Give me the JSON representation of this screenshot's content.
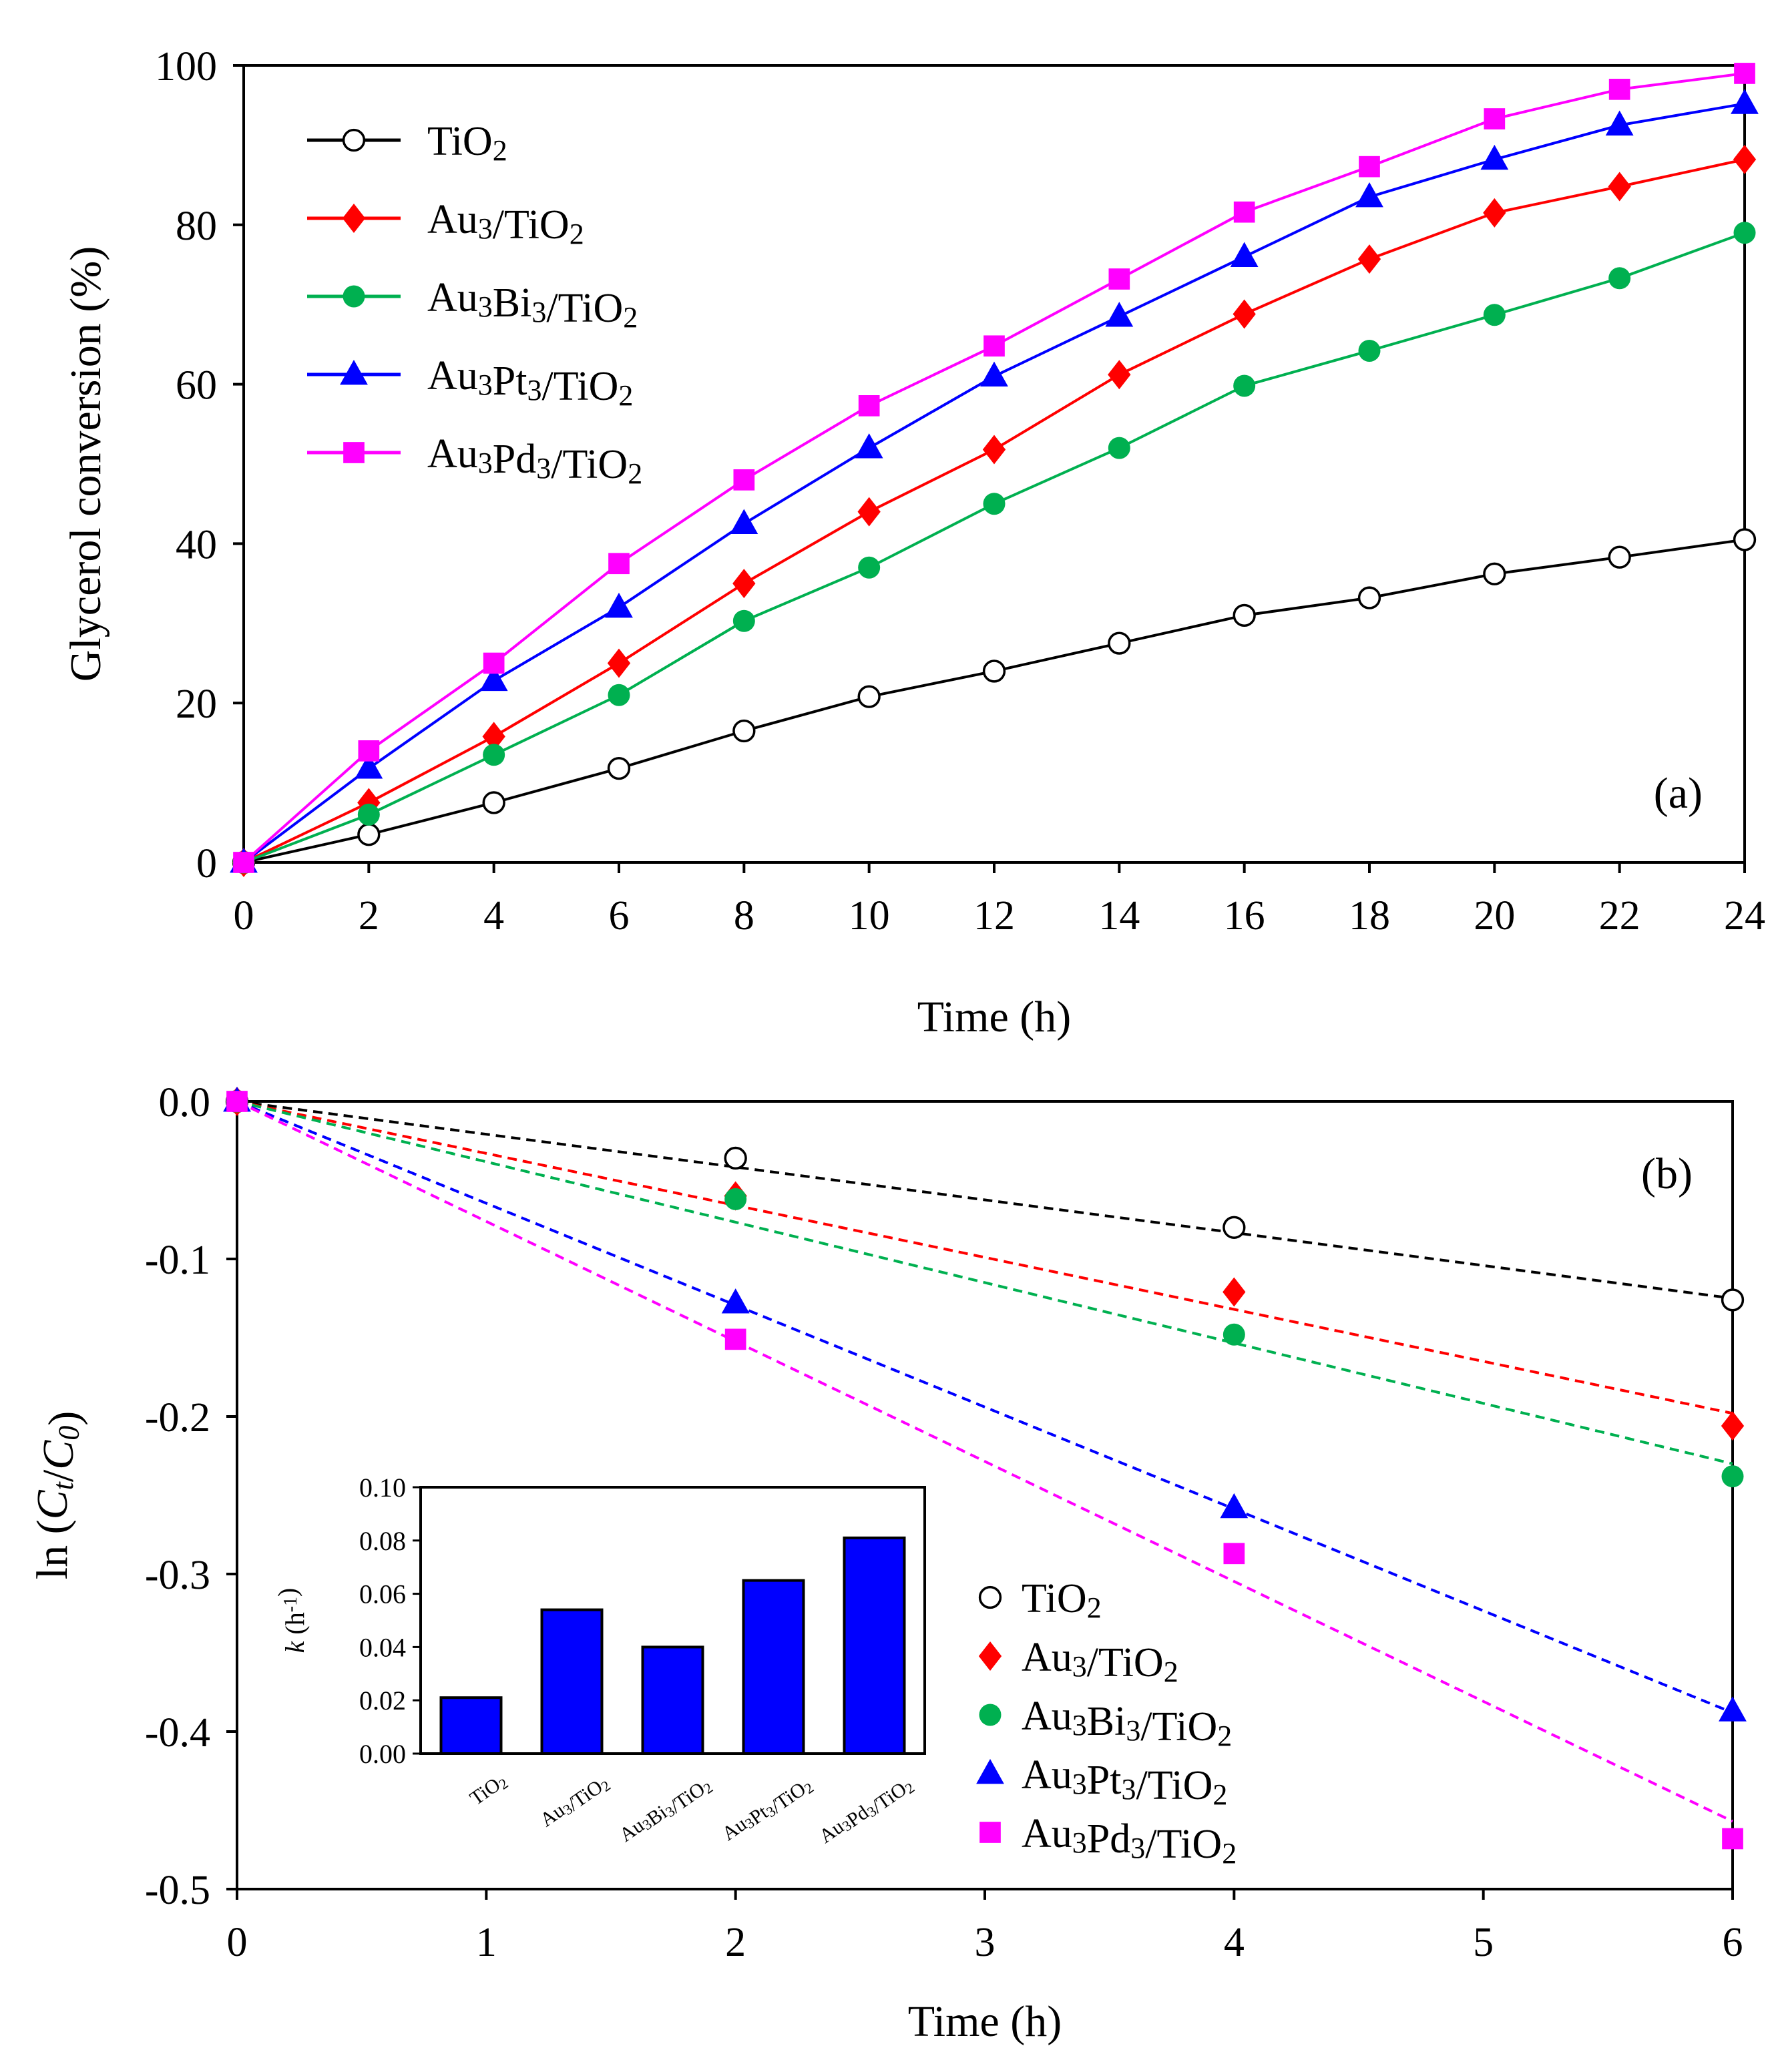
{
  "chart_data": [
    {
      "panel": "(a)",
      "type": "line",
      "xlabel": "Time (h)",
      "ylabel": "Glycerol conversion (%)",
      "xlim": [
        0,
        24
      ],
      "ylim": [
        0,
        100
      ],
      "x_ticks": [
        0,
        2,
        4,
        6,
        8,
        10,
        12,
        14,
        16,
        18,
        20,
        22,
        24
      ],
      "y_ticks": [
        0,
        20,
        40,
        60,
        80,
        100
      ],
      "x": [
        0,
        2,
        4,
        6,
        8,
        10,
        12,
        14,
        16,
        18,
        20,
        22,
        24
      ],
      "legend_position": "top-left",
      "series": [
        {
          "name": "TiO₂",
          "color": "#000000",
          "marker": "open-circle",
          "values": [
            0,
            3.5,
            7.5,
            11.8,
            16.5,
            20.8,
            24,
            27.5,
            31,
            33.2,
            36.2,
            38.3,
            40.5
          ]
        },
        {
          "name": "Au₃/TiO₂",
          "color": "#ff0000",
          "marker": "diamond",
          "values": [
            0,
            7.5,
            15.8,
            25,
            35,
            44,
            51.8,
            61.2,
            68.8,
            75.7,
            81.5,
            84.8,
            88.2
          ]
        },
        {
          "name": "Au₃Bi₃/TiO₂",
          "color": "#00b050",
          "marker": "circle",
          "values": [
            0,
            6,
            13.5,
            21,
            30.3,
            37,
            45,
            52,
            59.8,
            64.2,
            68.7,
            73.3,
            79
          ]
        },
        {
          "name": "Au₃Pt₃/TiO₂",
          "color": "#0000ff",
          "marker": "triangle",
          "values": [
            0,
            11.8,
            22.8,
            32,
            42.5,
            52,
            61,
            68.5,
            76,
            83.5,
            88.2,
            92.5,
            95.2
          ]
        },
        {
          "name": "Au₃Pd₃/TiO₂",
          "color": "#ff00ff",
          "marker": "square",
          "values": [
            0,
            14,
            25,
            37.5,
            48,
            57.3,
            64.8,
            73.2,
            81.6,
            87.3,
            93.3,
            97,
            99
          ]
        }
      ]
    },
    {
      "panel": "(b)",
      "type": "scatter",
      "xlabel": "Time (h)",
      "ylabel": "ln (Ct/C0)",
      "xlim": [
        0,
        6
      ],
      "ylim": [
        -0.5,
        0
      ],
      "x_ticks": [
        0,
        1,
        2,
        3,
        4,
        5,
        6
      ],
      "y_ticks": [
        0.0,
        -0.1,
        -0.2,
        -0.3,
        -0.4,
        -0.5
      ],
      "y_tick_labels": [
        "0.0",
        "-0.1",
        "-0.2",
        "-0.3",
        "-0.4",
        "-0.5"
      ],
      "x": [
        0,
        2,
        4,
        6
      ],
      "legend_position": "bottom-right",
      "series": [
        {
          "name": "TiO₂",
          "color": "#000000",
          "marker": "open-circle",
          "values": [
            0,
            -0.036,
            -0.08,
            -0.126
          ],
          "fit_end": -0.125
        },
        {
          "name": "Au₃/TiO₂",
          "color": "#ff0000",
          "marker": "diamond",
          "values": [
            0,
            -0.06,
            -0.121,
            -0.206
          ],
          "fit_end": -0.198
        },
        {
          "name": "Au₃Bi₃/TiO₂",
          "color": "#00b050",
          "marker": "circle",
          "values": [
            0,
            -0.062,
            -0.148,
            -0.238
          ],
          "fit_end": -0.23
        },
        {
          "name": "Au₃Pt₃/TiO₂",
          "color": "#0000ff",
          "marker": "triangle",
          "values": [
            0,
            -0.128,
            -0.258,
            -0.387
          ],
          "fit_end": -0.388
        },
        {
          "name": "Au₃Pd₃/TiO₂",
          "color": "#ff00ff",
          "marker": "square",
          "values": [
            0,
            -0.151,
            -0.287,
            -0.468
          ],
          "fit_end": -0.457
        }
      ]
    },
    {
      "panel": "inset",
      "type": "bar",
      "ylabel": "k (h-1)",
      "ylim": [
        0,
        0.1
      ],
      "y_ticks": [
        0.0,
        0.02,
        0.04,
        0.06,
        0.08,
        0.1
      ],
      "y_tick_labels": [
        "0.00",
        "0.02",
        "0.04",
        "0.06",
        "0.08",
        "0.10"
      ],
      "categories": [
        "TiO₂",
        "Au₃/TiO₂",
        "Au₃Bi₃/TiO₂",
        "Au₃Pt₃/TiO₂",
        "Au₃Pd₃/TiO₂"
      ],
      "values": [
        0.021,
        0.054,
        0.04,
        0.065,
        0.081
      ],
      "color": "#0000ff"
    }
  ]
}
